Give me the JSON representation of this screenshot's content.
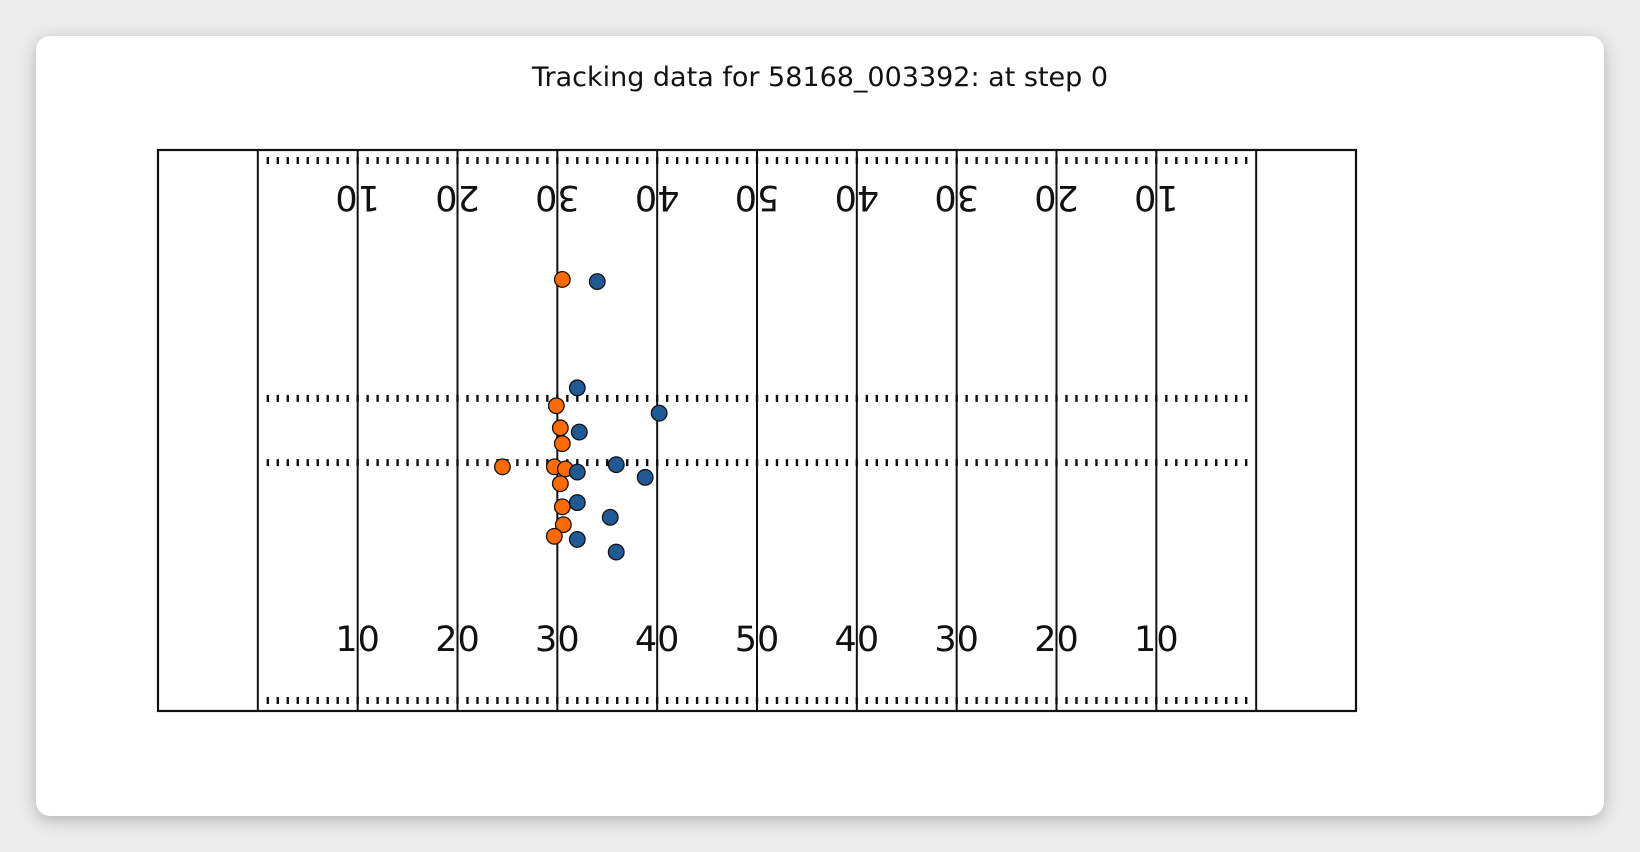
{
  "chart_data": {
    "type": "scatter",
    "title": "Tracking data for 58168_003392: at step 0",
    "xlim": [
      0,
      120
    ],
    "ylim": [
      0,
      53.3
    ],
    "grid": false,
    "yard_numbers": [
      "10",
      "20",
      "30",
      "40",
      "50",
      "40",
      "30",
      "20",
      "10"
    ],
    "series": [
      {
        "color": "#ff6a00",
        "points": [
          {
            "x": 40.5,
            "y": 41.0
          },
          {
            "x": 39.9,
            "y": 29.0
          },
          {
            "x": 40.3,
            "y": 26.9
          },
          {
            "x": 40.5,
            "y": 25.4
          },
          {
            "x": 34.5,
            "y": 23.2
          },
          {
            "x": 39.7,
            "y": 23.2
          },
          {
            "x": 40.8,
            "y": 23.0
          },
          {
            "x": 40.3,
            "y": 21.6
          },
          {
            "x": 40.5,
            "y": 19.4
          },
          {
            "x": 40.6,
            "y": 17.7
          },
          {
            "x": 39.7,
            "y": 16.6
          }
        ]
      },
      {
        "color": "#1f5a96",
        "points": [
          {
            "x": 44.0,
            "y": 40.8
          },
          {
            "x": 42.0,
            "y": 30.7
          },
          {
            "x": 50.2,
            "y": 28.3
          },
          {
            "x": 42.2,
            "y": 26.5
          },
          {
            "x": 45.9,
            "y": 23.4
          },
          {
            "x": 42.0,
            "y": 22.7
          },
          {
            "x": 48.8,
            "y": 22.2
          },
          {
            "x": 42.0,
            "y": 19.8
          },
          {
            "x": 45.3,
            "y": 18.4
          },
          {
            "x": 42.0,
            "y": 16.3
          },
          {
            "x": 45.9,
            "y": 15.1
          }
        ]
      }
    ]
  }
}
